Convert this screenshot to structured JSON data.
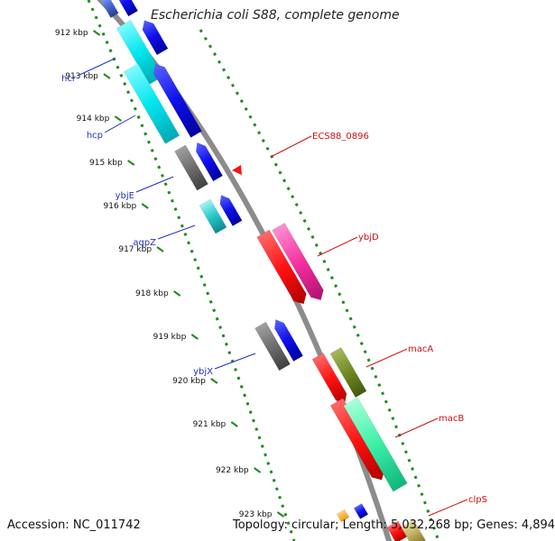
{
  "title": "Escherichia coli S88, complete genome",
  "footer": {
    "accession": "Accession: NC_011742",
    "summary": "Topology: circular; Length: 5,032,268 bp; Genes: 4,894"
  },
  "colors": {
    "backbone": "#8c8c8c",
    "dotted_track": "#1f8a1f",
    "reverse_label": "#1f2fc7",
    "forward_label": "#d01010"
  },
  "kbp_ticks": [
    "912 kbp",
    "913 kbp",
    "914 kbp",
    "915 kbp",
    "916 kbp",
    "917 kbp",
    "918 kbp",
    "919 kbp",
    "920 kbp",
    "921 kbp",
    "922 kbp",
    "923 kbp"
  ],
  "gene_labels": {
    "reverse": [
      "hcr",
      "hcp",
      "ybjE",
      "aqpZ",
      "ybjX"
    ],
    "forward": [
      "ECS88_0896",
      "ybjD",
      "macA",
      "macB",
      "clpS"
    ]
  }
}
